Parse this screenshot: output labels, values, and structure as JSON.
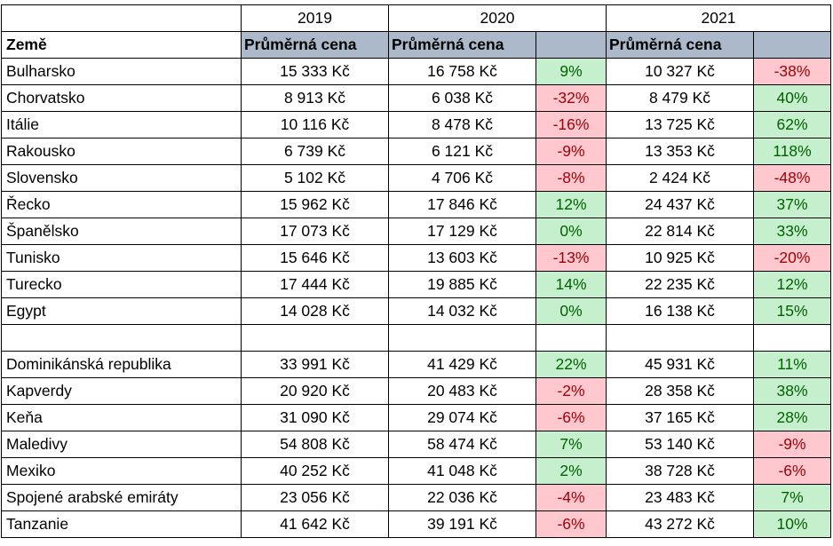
{
  "years": [
    "2019",
    "2020",
    "2021"
  ],
  "header": {
    "country_label": "Země",
    "price_label": "Průměrná cena"
  },
  "group1": [
    {
      "country": "Bulharsko",
      "p2019": "15 333 Kč",
      "p2020": "16 758 Kč",
      "c2020": "9%",
      "c2020_sign": "pos",
      "p2021": "10 327 Kč",
      "c2021": "-38%",
      "c2021_sign": "neg"
    },
    {
      "country": "Chorvatsko",
      "p2019": "8 913 Kč",
      "p2020": "6 038 Kč",
      "c2020": "-32%",
      "c2020_sign": "neg",
      "p2021": "8 479 Kč",
      "c2021": "40%",
      "c2021_sign": "pos"
    },
    {
      "country": "Itálie",
      "p2019": "10 116 Kč",
      "p2020": "8 478 Kč",
      "c2020": "-16%",
      "c2020_sign": "neg",
      "p2021": "13 725 Kč",
      "c2021": "62%",
      "c2021_sign": "pos"
    },
    {
      "country": "Rakousko",
      "p2019": "6 739 Kč",
      "p2020": "6 121 Kč",
      "c2020": "-9%",
      "c2020_sign": "neg",
      "p2021": "13 353 Kč",
      "c2021": "118%",
      "c2021_sign": "pos"
    },
    {
      "country": "Slovensko",
      "p2019": "5 102 Kč",
      "p2020": "4 706 Kč",
      "c2020": "-8%",
      "c2020_sign": "neg",
      "p2021": "2 424 Kč",
      "c2021": "-48%",
      "c2021_sign": "neg"
    },
    {
      "country": "Řecko",
      "p2019": "15 962 Kč",
      "p2020": "17 846 Kč",
      "c2020": "12%",
      "c2020_sign": "pos",
      "p2021": "24 437 Kč",
      "c2021": "37%",
      "c2021_sign": "pos"
    },
    {
      "country": "Španělsko",
      "p2019": "17 073 Kč",
      "p2020": "17 129 Kč",
      "c2020": "0%",
      "c2020_sign": "pos",
      "p2021": "22 814 Kč",
      "c2021": "33%",
      "c2021_sign": "pos"
    },
    {
      "country": "Tunisko",
      "p2019": "15 646 Kč",
      "p2020": "13 603 Kč",
      "c2020": "-13%",
      "c2020_sign": "neg",
      "p2021": "10 925 Kč",
      "c2021": "-20%",
      "c2021_sign": "neg"
    },
    {
      "country": "Turecko",
      "p2019": "17 444 Kč",
      "p2020": "19 885 Kč",
      "c2020": "14%",
      "c2020_sign": "pos",
      "p2021": "22 235 Kč",
      "c2021": "12%",
      "c2021_sign": "pos"
    },
    {
      "country": "Egypt",
      "p2019": "14 028 Kč",
      "p2020": "14 032 Kč",
      "c2020": "0%",
      "c2020_sign": "pos",
      "p2021": "16 138 Kč",
      "c2021": "15%",
      "c2021_sign": "pos"
    }
  ],
  "group2": [
    {
      "country": "Dominikánská republika",
      "p2019": "33 991 Kč",
      "p2020": "41 429 Kč",
      "c2020": "22%",
      "c2020_sign": "pos",
      "p2021": "45 931 Kč",
      "c2021": "11%",
      "c2021_sign": "pos"
    },
    {
      "country": "Kapverdy",
      "p2019": "20 920 Kč",
      "p2020": "20 483 Kč",
      "c2020": "-2%",
      "c2020_sign": "neg",
      "p2021": "28 358 Kč",
      "c2021": "38%",
      "c2021_sign": "pos"
    },
    {
      "country": "Keňa",
      "p2019": "31 090 Kč",
      "p2020": "29 074 Kč",
      "c2020": "-6%",
      "c2020_sign": "neg",
      "p2021": "37 165 Kč",
      "c2021": "28%",
      "c2021_sign": "pos"
    },
    {
      "country": "Maledivy",
      "p2019": "54 808 Kč",
      "p2020": "58 474 Kč",
      "c2020": "7%",
      "c2020_sign": "pos",
      "p2021": "53 140 Kč",
      "c2021": "-9%",
      "c2021_sign": "neg"
    },
    {
      "country": "Mexiko",
      "p2019": "40 252 Kč",
      "p2020": "41 048 Kč",
      "c2020": "2%",
      "c2020_sign": "pos",
      "p2021": "38 728 Kč",
      "c2021": "-6%",
      "c2021_sign": "neg"
    },
    {
      "country": "Spojené arabské emiráty",
      "p2019": "23 056 Kč",
      "p2020": "22 036 Kč",
      "c2020": "-4%",
      "c2020_sign": "neg",
      "p2021": "23 483 Kč",
      "c2021": "7%",
      "c2021_sign": "pos"
    },
    {
      "country": "Tanzanie",
      "p2019": "41 642 Kč",
      "p2020": "39 191 Kč",
      "c2020": "-6%",
      "c2020_sign": "neg",
      "p2021": "43 272 Kč",
      "c2021": "10%",
      "c2021_sign": "pos"
    }
  ],
  "colors": {
    "header_fill": "#acb9ca",
    "positive_fill": "#c6efce",
    "positive_text": "#006100",
    "negative_fill": "#ffc7ce",
    "negative_text": "#9c0006"
  }
}
